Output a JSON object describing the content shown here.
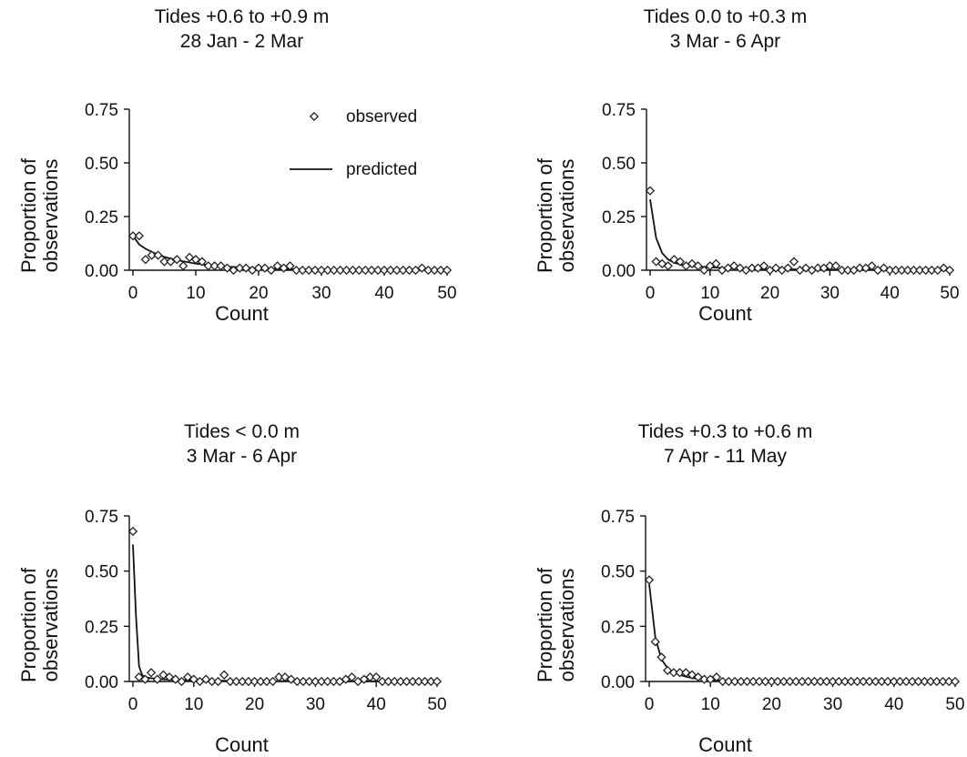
{
  "chart_data": [
    {
      "type": "scatter",
      "title": [
        "Tides +0.6 to +0.9 m",
        "28 Jan - 2 Mar"
      ],
      "xlabel": "Count",
      "ylabel": [
        "Proportion of",
        "observations"
      ],
      "xlim": [
        0,
        50
      ],
      "ylim": [
        0,
        0.75
      ],
      "xticks": [
        "0",
        "10",
        "20",
        "30",
        "40",
        "50"
      ],
      "yticks": [
        "0.00",
        "0.25",
        "0.50",
        "0.75"
      ],
      "grid": false,
      "legend": {
        "placement": "top-right",
        "entries": [
          {
            "label": "observed",
            "marker": "diamond"
          },
          {
            "label": "predicted",
            "marker": "line"
          }
        ]
      },
      "series": [
        {
          "name": "observed",
          "kind": "points",
          "x": [
            0,
            1,
            2,
            3,
            4,
            5,
            6,
            7,
            8,
            9,
            10,
            11,
            12,
            13,
            14,
            15,
            16,
            17,
            18,
            19,
            20,
            21,
            22,
            23,
            24,
            25,
            26,
            27,
            28,
            29,
            30,
            31,
            32,
            33,
            34,
            35,
            36,
            37,
            38,
            39,
            40,
            41,
            42,
            43,
            44,
            45,
            46,
            47,
            48,
            49,
            50
          ],
          "y": [
            0.16,
            0.16,
            0.05,
            0.07,
            0.07,
            0.04,
            0.04,
            0.05,
            0.02,
            0.06,
            0.05,
            0.04,
            0.02,
            0.02,
            0.02,
            0.01,
            0.0,
            0.01,
            0.01,
            0.0,
            0.01,
            0.01,
            0.0,
            0.02,
            0.01,
            0.02,
            0.0,
            0.0,
            0.0,
            0.0,
            0.0,
            0.0,
            0.0,
            0.0,
            0.0,
            0.0,
            0.0,
            0.0,
            0.0,
            0.0,
            0.0,
            0.0,
            0.0,
            0.0,
            0.0,
            0.0,
            0.01,
            0.0,
            0.0,
            0.0,
            0.0
          ]
        },
        {
          "name": "predicted",
          "kind": "line",
          "x": [
            0,
            1,
            2,
            3,
            4,
            5,
            6,
            7,
            8,
            9,
            10,
            12,
            14,
            16,
            18,
            20,
            25,
            30,
            35,
            40,
            45,
            50
          ],
          "y": [
            0.16,
            0.12,
            0.1,
            0.085,
            0.072,
            0.062,
            0.054,
            0.047,
            0.041,
            0.036,
            0.031,
            0.024,
            0.019,
            0.015,
            0.012,
            0.009,
            0.005,
            0.003,
            0.002,
            0.001,
            0.001,
            0.0
          ]
        }
      ]
    },
    {
      "type": "scatter",
      "title": [
        "Tides 0.0 to +0.3 m",
        "3 Mar - 6 Apr"
      ],
      "xlabel": "Count",
      "ylabel": [
        "Proportion of",
        "observations"
      ],
      "xlim": [
        0,
        50
      ],
      "ylim": [
        0,
        0.75
      ],
      "xticks": [
        "0",
        "10",
        "20",
        "30",
        "40",
        "50"
      ],
      "yticks": [
        "0.00",
        "0.25",
        "0.50",
        "0.75"
      ],
      "grid": false,
      "series": [
        {
          "name": "observed",
          "kind": "points",
          "x": [
            0,
            1,
            2,
            3,
            4,
            5,
            6,
            7,
            8,
            9,
            10,
            11,
            12,
            13,
            14,
            15,
            16,
            17,
            18,
            19,
            20,
            21,
            22,
            23,
            24,
            25,
            26,
            27,
            28,
            29,
            30,
            31,
            32,
            33,
            34,
            35,
            36,
            37,
            38,
            39,
            40,
            41,
            42,
            43,
            44,
            45,
            46,
            47,
            48,
            49,
            50
          ],
          "y": [
            0.37,
            0.04,
            0.03,
            0.02,
            0.05,
            0.04,
            0.02,
            0.03,
            0.02,
            0.0,
            0.02,
            0.03,
            0.0,
            0.01,
            0.02,
            0.01,
            0.0,
            0.01,
            0.01,
            0.02,
            0.0,
            0.01,
            0.0,
            0.01,
            0.04,
            0.0,
            0.01,
            0.0,
            0.01,
            0.01,
            0.02,
            0.02,
            0.0,
            0.0,
            0.0,
            0.01,
            0.01,
            0.02,
            0.0,
            0.01,
            0.0,
            0.0,
            0.0,
            0.0,
            0.0,
            0.0,
            0.0,
            0.0,
            0.0,
            0.01,
            0.0
          ]
        },
        {
          "name": "predicted",
          "kind": "line",
          "x": [
            0,
            1,
            2,
            3,
            4,
            5,
            6,
            8,
            10,
            15,
            20,
            25,
            30,
            40,
            50
          ],
          "y": [
            0.33,
            0.15,
            0.08,
            0.05,
            0.035,
            0.027,
            0.022,
            0.016,
            0.013,
            0.008,
            0.005,
            0.004,
            0.003,
            0.002,
            0.001
          ]
        }
      ]
    },
    {
      "type": "scatter",
      "title": [
        "Tides < 0.0 m",
        "3 Mar - 6 Apr"
      ],
      "xlabel": "Count",
      "ylabel": [
        "Proportion of",
        "observations"
      ],
      "xlim": [
        0,
        50
      ],
      "ylim": [
        0,
        0.75
      ],
      "xticks": [
        "0",
        "10",
        "20",
        "30",
        "40",
        "50"
      ],
      "yticks": [
        "0.00",
        "0.25",
        "0.50",
        "0.75"
      ],
      "grid": false,
      "series": [
        {
          "name": "observed",
          "kind": "points",
          "x": [
            0,
            1,
            2,
            3,
            4,
            5,
            6,
            7,
            8,
            9,
            10,
            11,
            12,
            13,
            14,
            15,
            16,
            17,
            18,
            19,
            20,
            21,
            22,
            23,
            24,
            25,
            26,
            27,
            28,
            29,
            30,
            31,
            32,
            33,
            34,
            35,
            36,
            37,
            38,
            39,
            40,
            41,
            42,
            43,
            44,
            45,
            46,
            47,
            48,
            49,
            50
          ],
          "y": [
            0.68,
            0.02,
            0.01,
            0.04,
            0.01,
            0.03,
            0.02,
            0.01,
            0.0,
            0.02,
            0.01,
            0.0,
            0.01,
            0.0,
            0.0,
            0.03,
            0.0,
            0.0,
            0.0,
            0.0,
            0.0,
            0.0,
            0.0,
            0.0,
            0.02,
            0.02,
            0.01,
            0.0,
            0.0,
            0.0,
            0.0,
            0.0,
            0.0,
            0.0,
            0.0,
            0.01,
            0.02,
            0.0,
            0.01,
            0.02,
            0.02,
            0.0,
            0.0,
            0.0,
            0.0,
            0.0,
            0.0,
            0.0,
            0.0,
            0.0,
            0.0
          ]
        },
        {
          "name": "predicted",
          "kind": "line",
          "x": [
            0,
            0.5,
            1,
            1.5,
            2,
            3,
            5,
            10,
            20,
            30,
            40,
            50
          ],
          "y": [
            0.62,
            0.3,
            0.07,
            0.03,
            0.02,
            0.015,
            0.01,
            0.005,
            0.002,
            0.001,
            0.001,
            0.0
          ]
        }
      ]
    },
    {
      "type": "scatter",
      "title": [
        "Tides +0.3 to +0.6 m",
        "7 Apr - 11 May"
      ],
      "xlabel": "Count",
      "ylabel": [
        "Proportion of",
        "observations"
      ],
      "xlim": [
        0,
        50
      ],
      "ylim": [
        0,
        0.75
      ],
      "xticks": [
        "0",
        "10",
        "20",
        "30",
        "40",
        "50"
      ],
      "yticks": [
        "0.00",
        "0.25",
        "0.50",
        "0.75"
      ],
      "grid": false,
      "series": [
        {
          "name": "observed",
          "kind": "points",
          "x": [
            0,
            1,
            2,
            3,
            4,
            5,
            6,
            7,
            8,
            9,
            10,
            11,
            12,
            13,
            14,
            15,
            16,
            17,
            18,
            19,
            20,
            21,
            22,
            23,
            24,
            25,
            26,
            27,
            28,
            29,
            30,
            31,
            32,
            33,
            34,
            35,
            36,
            37,
            38,
            39,
            40,
            41,
            42,
            43,
            44,
            45,
            46,
            47,
            48,
            49,
            50
          ],
          "y": [
            0.46,
            0.18,
            0.11,
            0.05,
            0.04,
            0.04,
            0.04,
            0.03,
            0.02,
            0.01,
            0.01,
            0.02,
            0.0,
            0.0,
            0.0,
            0.0,
            0.0,
            0.0,
            0.0,
            0.0,
            0.0,
            0.0,
            0.0,
            0.0,
            0.0,
            0.0,
            0.0,
            0.0,
            0.0,
            0.0,
            0.0,
            0.0,
            0.0,
            0.0,
            0.0,
            0.0,
            0.0,
            0.0,
            0.0,
            0.0,
            0.0,
            0.0,
            0.0,
            0.0,
            0.0,
            0.0,
            0.0,
            0.0,
            0.0,
            0.0,
            0.0
          ]
        },
        {
          "name": "predicted",
          "kind": "line",
          "x": [
            0,
            1,
            2,
            3,
            4,
            5,
            6,
            7,
            8,
            10,
            12,
            15,
            20,
            30,
            40,
            50
          ],
          "y": [
            0.44,
            0.2,
            0.1,
            0.06,
            0.04,
            0.03,
            0.022,
            0.016,
            0.012,
            0.007,
            0.004,
            0.002,
            0.001,
            0.0,
            0.0,
            0.0
          ]
        }
      ]
    }
  ]
}
